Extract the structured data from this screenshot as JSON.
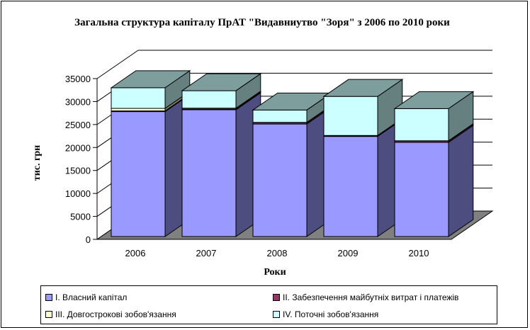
{
  "chart_data": {
    "type": "bar",
    "stacked": true,
    "three_d": true,
    "title": "Загальна структура капіталу ПрАТ \"Видавниутво \"Зоря\" з 2006 по 2010 роки",
    "xlabel": "Роки",
    "ylabel": "тис. грн",
    "categories": [
      "2006",
      "2007",
      "2008",
      "2009",
      "2010"
    ],
    "ylim": [
      0,
      35000
    ],
    "yticks": [
      "0",
      "5000",
      "10000",
      "15000",
      "20000",
      "25000",
      "30000",
      "35000"
    ],
    "grid": true,
    "legend_position": "bottom",
    "series": [
      {
        "name": "I. Власний капітал",
        "values": [
          27200,
          27600,
          24500,
          21800,
          20500
        ],
        "color": "#9999ff"
      },
      {
        "name": "II. Забезпечення майбутніх витрат і платежів",
        "values": [
          150,
          150,
          300,
          150,
          300
        ],
        "color": "#993366"
      },
      {
        "name": "III. Довгострокові зобов'язання",
        "values": [
          550,
          200,
          50,
          50,
          50
        ],
        "color": "#ffffcc"
      },
      {
        "name": "IV. Поточні зобов'язання",
        "values": [
          4500,
          3800,
          2700,
          8500,
          7000
        ],
        "color": "#ccffff"
      }
    ]
  }
}
